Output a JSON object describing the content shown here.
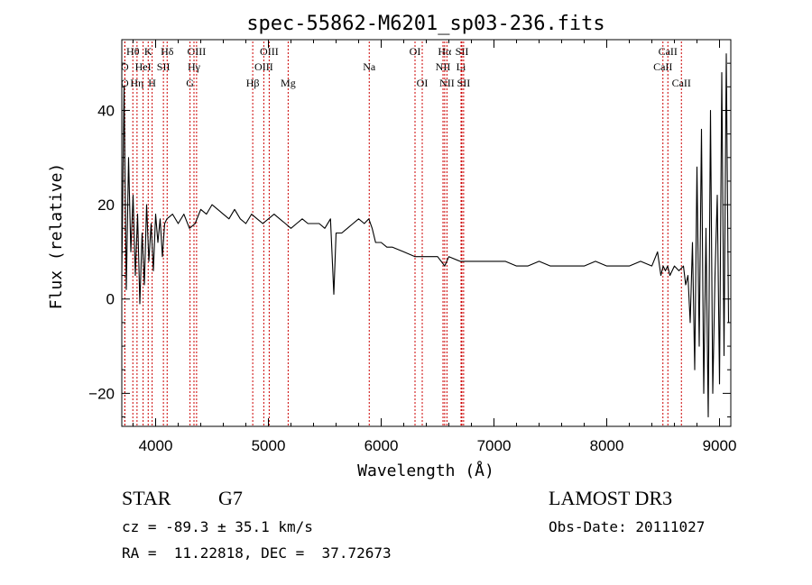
{
  "chart_data": {
    "type": "line",
    "title": "spec-55862-M6201_sp03-236.fits",
    "xlabel": "Wavelength (Å)",
    "ylabel": "Flux (relative)",
    "xlim": [
      3700,
      9100
    ],
    "ylim": [
      -27,
      55
    ],
    "x_ticks": [
      4000,
      5000,
      6000,
      7000,
      8000,
      9000
    ],
    "y_ticks": [
      -20,
      0,
      20,
      40
    ],
    "series": [
      {
        "name": "spectrum",
        "x": [
          3700,
          3720,
          3740,
          3760,
          3780,
          3800,
          3820,
          3840,
          3860,
          3880,
          3900,
          3920,
          3940,
          3960,
          3980,
          4000,
          4020,
          4040,
          4060,
          4080,
          4100,
          4150,
          4200,
          4250,
          4300,
          4350,
          4400,
          4450,
          4500,
          4550,
          4600,
          4650,
          4700,
          4750,
          4800,
          4850,
          4900,
          4950,
          5000,
          5050,
          5100,
          5150,
          5200,
          5250,
          5300,
          5350,
          5400,
          5450,
          5500,
          5550,
          5580,
          5600,
          5650,
          5700,
          5750,
          5800,
          5850,
          5890,
          5920,
          5950,
          6000,
          6050,
          6100,
          6200,
          6300,
          6400,
          6500,
          6563,
          6600,
          6700,
          6800,
          6900,
          7000,
          7100,
          7200,
          7300,
          7400,
          7500,
          7600,
          7700,
          7800,
          7900,
          8000,
          8100,
          8200,
          8300,
          8400,
          8450,
          8480,
          8500,
          8520,
          8540,
          8560,
          8600,
          8640,
          8680,
          8700,
          8720,
          8740,
          8760,
          8780,
          8800,
          8820,
          8840,
          8860,
          8880,
          8900,
          8920,
          8940,
          8960,
          8980,
          9000,
          9020,
          9040,
          9060,
          9080
        ],
        "y": [
          5,
          45,
          2,
          30,
          10,
          22,
          5,
          18,
          -1,
          14,
          3,
          20,
          8,
          16,
          6,
          18,
          12,
          17,
          9,
          16,
          17,
          18,
          16,
          18,
          15,
          16,
          19,
          18,
          20,
          19,
          18,
          17,
          19,
          17,
          16,
          18,
          17,
          16,
          17,
          18,
          17,
          16,
          15,
          16,
          17,
          16,
          16,
          16,
          15,
          17,
          1,
          14,
          14,
          15,
          16,
          17,
          16,
          17,
          15,
          12,
          12,
          11,
          11,
          10,
          9,
          9,
          9,
          7,
          9,
          8,
          8,
          8,
          8,
          8,
          7,
          7,
          8,
          7,
          7,
          7,
          7,
          8,
          7,
          7,
          7,
          8,
          7,
          10,
          5,
          7,
          6,
          7,
          5,
          7,
          6,
          7,
          3,
          5,
          -5,
          12,
          -15,
          28,
          -10,
          36,
          -20,
          15,
          -25,
          40,
          -20,
          5,
          22,
          -18,
          48,
          -12,
          52,
          -5
        ]
      }
    ],
    "line_markers": [
      {
        "label": "Hθ",
        "x": 3798,
        "row": 1
      },
      {
        "label": "O",
        "x": 3727,
        "row": 2
      },
      {
        "label": "O",
        "x": 3727,
        "row": 3
      },
      {
        "label": "Hη",
        "x": 3835,
        "row": 3
      },
      {
        "label": "HeI",
        "x": 3889,
        "row": 2
      },
      {
        "label": "K",
        "x": 3934,
        "row": 1
      },
      {
        "label": "H",
        "x": 3969,
        "row": 3
      },
      {
        "label": "SII",
        "x": 4069,
        "row": 2
      },
      {
        "label": "Hδ",
        "x": 4102,
        "row": 1
      },
      {
        "label": "OIII",
        "x": 4363,
        "row": 1
      },
      {
        "label": "Hγ",
        "x": 4340,
        "row": 2
      },
      {
        "label": "G",
        "x": 4305,
        "row": 3
      },
      {
        "label": "Hβ",
        "x": 4861,
        "row": 3
      },
      {
        "label": "OIII",
        "x": 5007,
        "row": 1
      },
      {
        "label": "OIII",
        "x": 4959,
        "row": 2
      },
      {
        "label": "Mg",
        "x": 5175,
        "row": 3
      },
      {
        "label": "Na",
        "x": 5894,
        "row": 2
      },
      {
        "label": "OI",
        "x": 6300,
        "row": 1
      },
      {
        "label": "OI",
        "x": 6364,
        "row": 3
      },
      {
        "label": "Hα",
        "x": 6563,
        "row": 1
      },
      {
        "label": "NII",
        "x": 6548,
        "row": 2
      },
      {
        "label": "NII",
        "x": 6583,
        "row": 3
      },
      {
        "label": "SII",
        "x": 6716,
        "row": 1
      },
      {
        "label": "Li",
        "x": 6708,
        "row": 2
      },
      {
        "label": "SII",
        "x": 6731,
        "row": 3
      },
      {
        "label": "CaII",
        "x": 8542,
        "row": 1
      },
      {
        "label": "CaII",
        "x": 8498,
        "row": 2
      },
      {
        "label": "CaII",
        "x": 8662,
        "row": 3
      }
    ],
    "grid": false
  },
  "info": {
    "object_class": "STAR",
    "subclass": "G7",
    "survey": "LAMOST DR3",
    "redshift_line": "cz = -89.3 ± 35.1 km/s",
    "obs_date": "Obs-Date: 20111027",
    "coords": "RA =  11.22818, DEC =  37.72673"
  },
  "colors": {
    "spectrum": "#000000",
    "marker": "#cc0000"
  }
}
